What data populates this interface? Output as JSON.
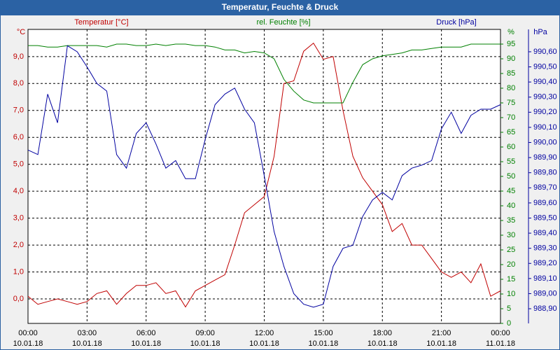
{
  "chart_data": {
    "type": "line",
    "title": "Temperatur, Feuchte & Druck",
    "x": [
      0,
      0.5,
      1,
      1.5,
      2,
      2.5,
      3,
      3.5,
      4,
      4.5,
      5,
      5.5,
      6,
      6.5,
      7,
      7.5,
      8,
      8.5,
      9,
      9.5,
      10,
      10.5,
      11,
      11.5,
      12,
      12.5,
      13,
      13.5,
      14,
      14.5,
      15,
      15.5,
      16,
      16.5,
      17,
      17.5,
      18,
      18.5,
      19,
      19.5,
      20,
      20.5,
      21,
      21.5,
      22,
      22.5,
      23,
      23.5,
      24
    ],
    "xlim": [
      0,
      24
    ],
    "xticks": [
      {
        "value": 0,
        "label": "00:00 10.01.18"
      },
      {
        "value": 3,
        "label": "03:00 10.01.18"
      },
      {
        "value": 6,
        "label": "06:00 10.01.18"
      },
      {
        "value": 9,
        "label": "09:00 10.01.18"
      },
      {
        "value": 12,
        "label": "12:00 10.01.18"
      },
      {
        "value": 15,
        "label": "15:00 10.01.18"
      },
      {
        "value": 18,
        "label": "18:00 10.01.18"
      },
      {
        "value": 21,
        "label": "21:00 10.01.18"
      },
      {
        "value": 24,
        "label": "00:00 11.01.18"
      }
    ],
    "ylabel": "°C",
    "ylim": [
      -0.91,
      10.01
    ],
    "yticks": [
      {
        "value": 0,
        "label": "0,0"
      },
      {
        "value": 1,
        "label": "1,0"
      },
      {
        "value": 2,
        "label": "2,0"
      },
      {
        "value": 3,
        "label": "3,0"
      },
      {
        "value": 4,
        "label": "4,0"
      },
      {
        "value": 5,
        "label": "5,0"
      },
      {
        "value": 6,
        "label": "6,0"
      },
      {
        "value": 7,
        "label": "7,0"
      },
      {
        "value": 8,
        "label": "8,0"
      },
      {
        "value": 9,
        "label": "9,0"
      }
    ],
    "y2label": "%",
    "y2lim": [
      0,
      100
    ],
    "y2ticks": [
      0,
      5,
      10,
      15,
      20,
      25,
      30,
      35,
      40,
      45,
      50,
      55,
      60,
      65,
      70,
      75,
      80,
      85,
      90,
      95
    ],
    "y3label": "hPa",
    "y3lim": [
      988.803,
      990.748
    ],
    "y3ticks": [
      {
        "value": 988.9,
        "label": "988,90"
      },
      {
        "value": 989.0,
        "label": "989,00"
      },
      {
        "value": 989.1,
        "label": "989,10"
      },
      {
        "value": 989.2,
        "label": "989,20"
      },
      {
        "value": 989.3,
        "label": "989,30"
      },
      {
        "value": 989.4,
        "label": "989,40"
      },
      {
        "value": 989.5,
        "label": "989,50"
      },
      {
        "value": 989.6,
        "label": "989,60"
      },
      {
        "value": 989.7,
        "label": "989,70"
      },
      {
        "value": 989.8,
        "label": "989,80"
      },
      {
        "value": 989.9,
        "label": "989,90"
      },
      {
        "value": 990.0,
        "label": "990,00"
      },
      {
        "value": 990.1,
        "label": "990,10"
      },
      {
        "value": 990.2,
        "label": "990,20"
      },
      {
        "value": 990.3,
        "label": "990,30"
      },
      {
        "value": 990.4,
        "label": "990,40"
      },
      {
        "value": 990.5,
        "label": "990,50"
      },
      {
        "value": 990.6,
        "label": "990,60"
      }
    ],
    "grid": true,
    "series": [
      {
        "name": "Temperatur [°C]",
        "color": "#c00000",
        "axis": "y",
        "values": [
          0.1,
          -0.2,
          -0.1,
          0.0,
          -0.1,
          -0.2,
          -0.1,
          0.2,
          0.3,
          -0.2,
          0.2,
          0.5,
          0.5,
          0.6,
          0.2,
          0.3,
          -0.3,
          0.3,
          0.5,
          0.7,
          0.9,
          2.0,
          3.2,
          3.5,
          3.8,
          5.3,
          8.0,
          8.1,
          9.2,
          9.5,
          8.9,
          9.0,
          7.0,
          5.3,
          4.5,
          4.0,
          3.5,
          2.5,
          2.8,
          2.0,
          2.0,
          1.5,
          1.0,
          0.8,
          1.0,
          0.6,
          1.3,
          0.1,
          0.3
        ]
      },
      {
        "name": "rel. Feuchte [%]",
        "color": "#008000",
        "axis": "y2",
        "values": [
          94.5,
          94.5,
          94,
          94,
          94.5,
          94.5,
          94.5,
          94.5,
          94,
          95,
          95,
          94.5,
          94.5,
          95,
          94.5,
          95,
          95,
          94.5,
          94.5,
          94,
          93,
          93,
          92,
          92.5,
          92,
          90,
          83,
          79,
          76,
          75,
          75,
          75,
          75,
          82,
          88,
          90,
          91,
          91.5,
          92,
          93,
          93,
          93.5,
          94,
          94,
          94,
          95,
          95,
          95,
          95
        ]
      },
      {
        "name": "Druck [hPa]",
        "color": "#0000a0",
        "axis": "y3",
        "values": [
          989.95,
          989.92,
          990.32,
          990.13,
          990.64,
          990.6,
          990.5,
          990.39,
          990.34,
          989.92,
          989.83,
          990.06,
          990.13,
          989.99,
          989.83,
          989.88,
          989.76,
          989.76,
          990.02,
          990.25,
          990.32,
          990.36,
          990.22,
          990.13,
          989.78,
          989.41,
          989.18,
          989.0,
          988.93,
          988.91,
          988.93,
          989.18,
          989.3,
          989.32,
          989.51,
          989.62,
          989.67,
          989.62,
          989.78,
          989.83,
          989.85,
          989.88,
          990.09,
          990.2,
          990.06,
          990.18,
          990.22,
          990.22,
          990.25
        ]
      }
    ]
  }
}
